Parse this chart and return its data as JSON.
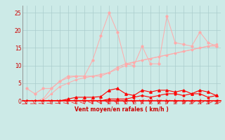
{
  "x": [
    0,
    1,
    2,
    3,
    4,
    5,
    6,
    7,
    8,
    9,
    10,
    11,
    12,
    13,
    14,
    15,
    16,
    17,
    18,
    19,
    20,
    21,
    22,
    23
  ],
  "line1": [
    3.5,
    2.0,
    3.5,
    3.5,
    5.5,
    7.0,
    7.0,
    7.0,
    11.5,
    18.5,
    25.0,
    19.5,
    10.5,
    10.0,
    15.5,
    10.5,
    10.5,
    24.0,
    16.5,
    16.0,
    15.5,
    19.5,
    16.5,
    15.5
  ],
  "line2": [
    0.0,
    0.0,
    0.5,
    3.5,
    5.5,
    6.5,
    7.0,
    7.0,
    7.0,
    7.0,
    8.0,
    9.5,
    10.5,
    11.0,
    11.5,
    12.0,
    12.5,
    13.0,
    13.5,
    14.0,
    14.5,
    15.0,
    15.5,
    15.5
  ],
  "line3": [
    0.0,
    0.0,
    0.0,
    2.0,
    4.0,
    5.0,
    6.0,
    6.5,
    7.0,
    7.5,
    8.0,
    9.0,
    10.0,
    11.0,
    11.5,
    12.0,
    12.5,
    13.0,
    13.5,
    14.0,
    14.5,
    15.0,
    15.5,
    16.0
  ],
  "line4": [
    0.0,
    0.0,
    0.0,
    0.0,
    0.0,
    0.5,
    1.0,
    1.0,
    1.0,
    1.2,
    3.0,
    3.5,
    2.0,
    1.5,
    3.0,
    2.5,
    3.0,
    3.0,
    2.5,
    3.0,
    2.0,
    3.0,
    2.5,
    1.5
  ],
  "line5": [
    0.0,
    0.0,
    0.0,
    0.0,
    0.0,
    0.0,
    0.0,
    0.0,
    0.0,
    0.0,
    0.5,
    0.5,
    0.5,
    1.0,
    1.5,
    1.0,
    1.5,
    2.0,
    2.0,
    1.5,
    2.0,
    2.0,
    1.0,
    1.5
  ],
  "line6": [
    0.0,
    0.0,
    0.0,
    0.0,
    0.0,
    0.0,
    0.0,
    0.0,
    0.0,
    0.0,
    0.0,
    0.0,
    0.0,
    0.0,
    0.0,
    0.0,
    0.0,
    0.0,
    0.0,
    0.0,
    0.0,
    0.0,
    0.0,
    0.0
  ],
  "bg_color": "#cceae7",
  "grid_color": "#aacccc",
  "line1_color": "#ffaaaa",
  "line2_color": "#ffaaaa",
  "line3_color": "#ffaaaa",
  "line4_color": "#ff0000",
  "line5_color": "#ff0000",
  "line6_color": "#ff0000",
  "xlabel": "Vent moyen/en rafales ( km/h )",
  "ylabel_ticks": [
    0,
    5,
    10,
    15,
    20,
    25
  ],
  "xlim": [
    -0.5,
    23.5
  ],
  "ylim": [
    0,
    27
  ]
}
